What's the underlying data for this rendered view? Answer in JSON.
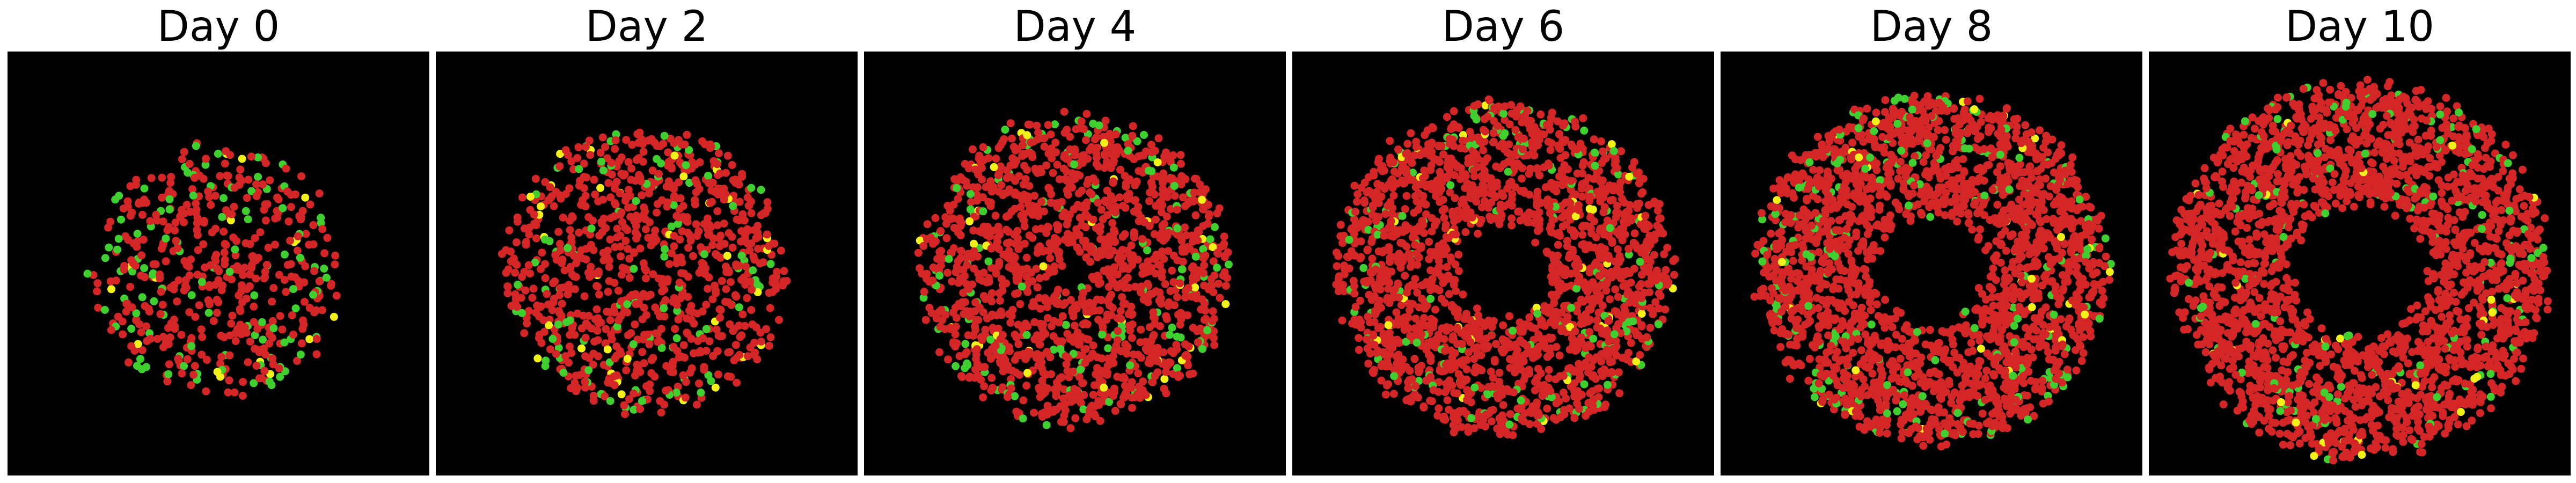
{
  "panels": [
    {
      "title": "Day 0",
      "day": 0,
      "colony": {
        "inner_radius": 0,
        "outer_radius": 0.6,
        "cell_count": 520,
        "green_share": 0.22,
        "yellow_share": 0.04
      }
    },
    {
      "title": "Day 2",
      "day": 2,
      "colony": {
        "inner_radius": 0,
        "outer_radius": 0.68,
        "cell_count": 950,
        "green_share": 0.12,
        "yellow_share": 0.035
      }
    },
    {
      "title": "Day 4",
      "day": 4,
      "colony": {
        "inner_radius": 0.1,
        "outer_radius": 0.74,
        "cell_count": 1500,
        "green_share": 0.08,
        "yellow_share": 0.02
      }
    },
    {
      "title": "Day 6",
      "day": 6,
      "colony": {
        "inner_radius": 0.24,
        "outer_radius": 0.8,
        "cell_count": 2000,
        "green_share": 0.07,
        "yellow_share": 0.02
      }
    },
    {
      "title": "Day 8",
      "day": 8,
      "colony": {
        "inner_radius": 0.28,
        "outer_radius": 0.84,
        "cell_count": 2300,
        "green_share": 0.07,
        "yellow_share": 0.015
      }
    },
    {
      "title": "Day 10",
      "day": 10,
      "colony": {
        "inner_radius": 0.34,
        "outer_radius": 0.9,
        "cell_count": 2500,
        "green_share": 0.05,
        "yellow_share": 0.012
      }
    }
  ],
  "colors": {
    "background": "#000000",
    "red_cell": "#d42626",
    "green_cell": "#3fcf2f",
    "yellow_cell": "#f2f21a"
  }
}
